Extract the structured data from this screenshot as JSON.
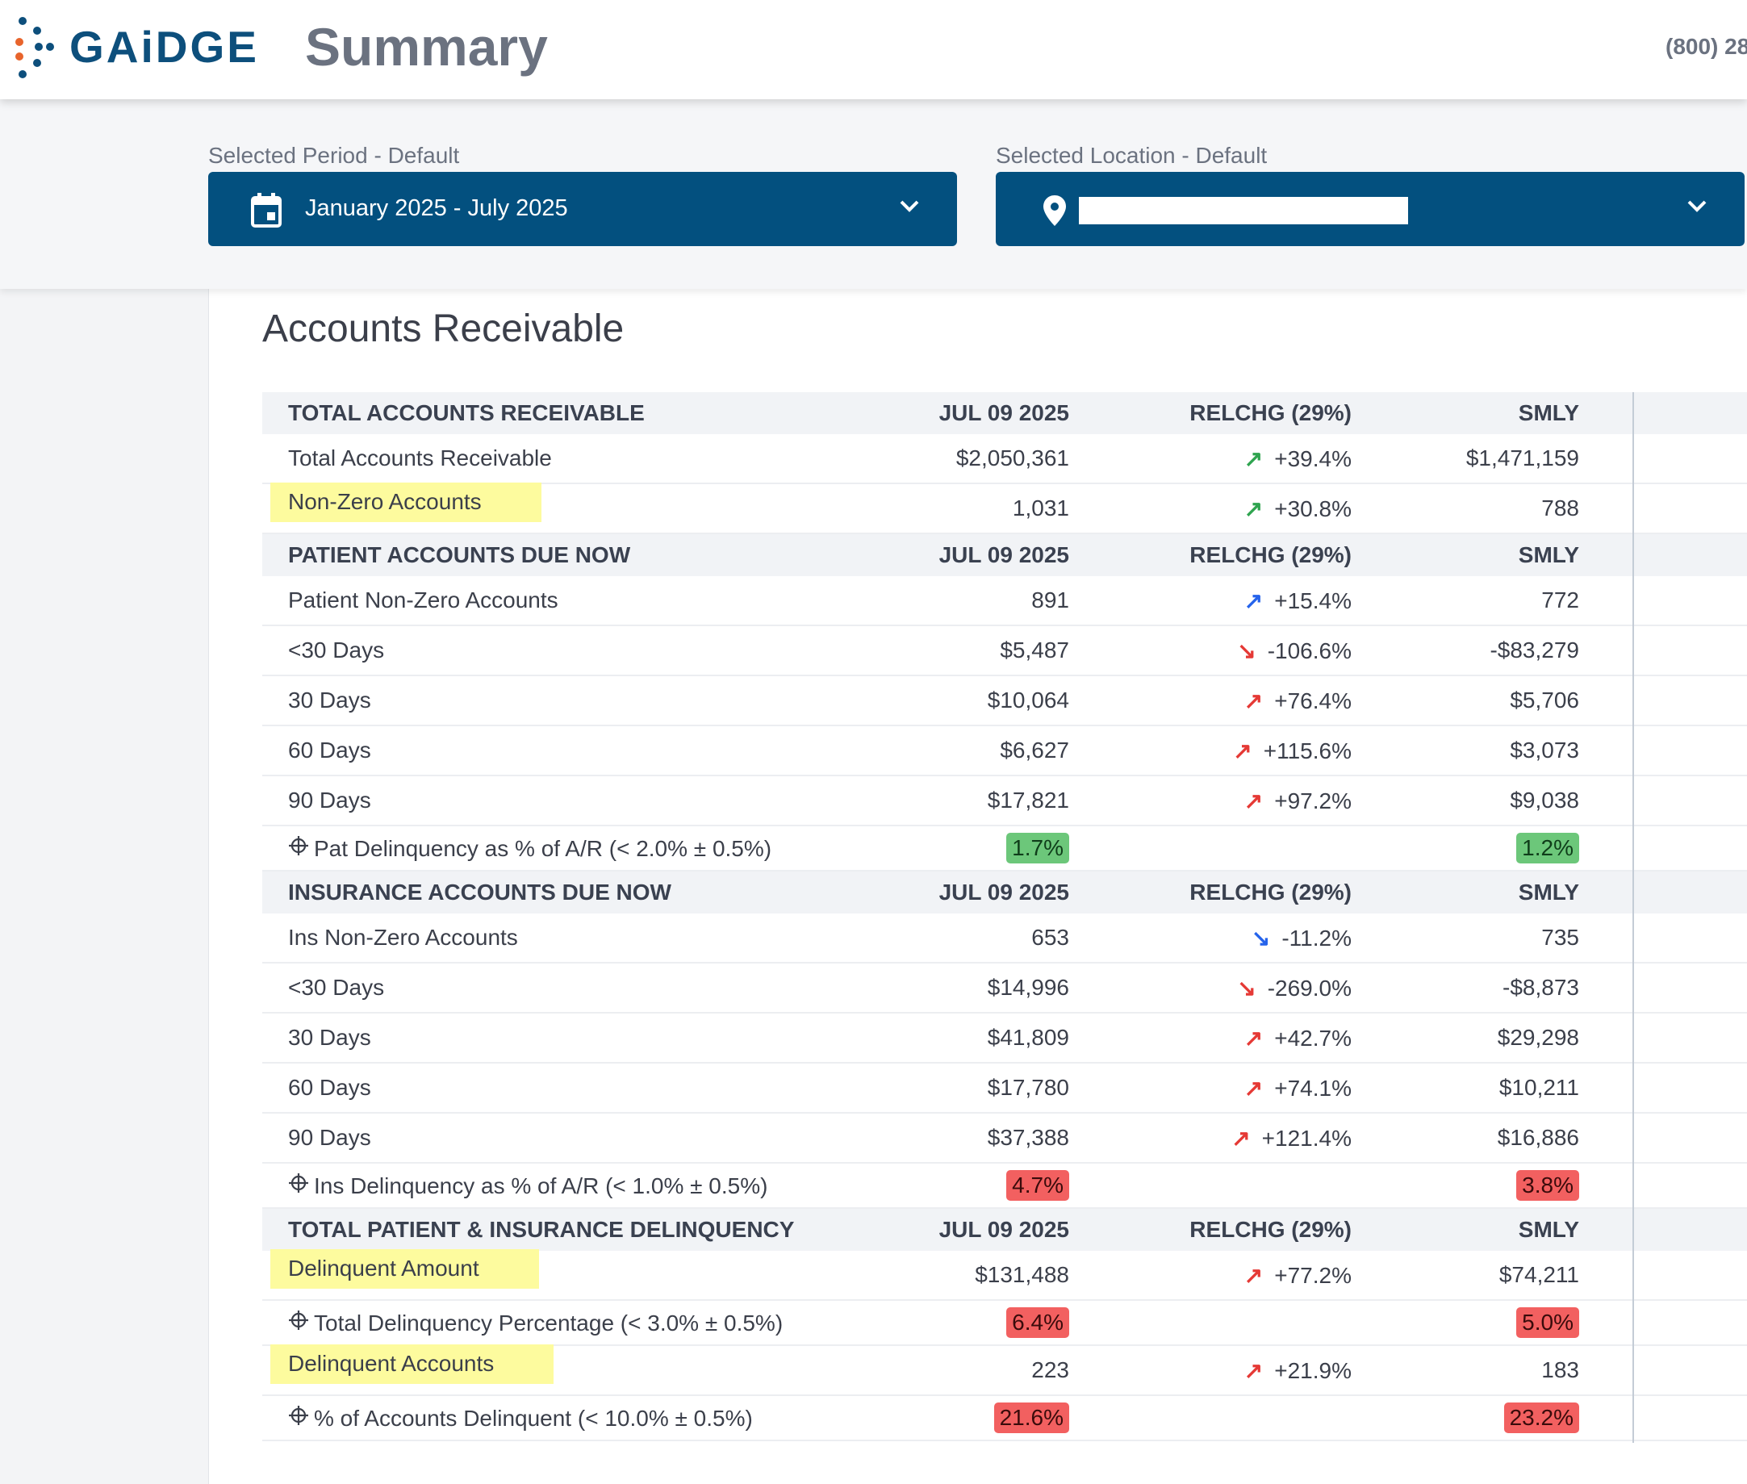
{
  "header": {
    "logo_text": "GAiDGE",
    "page_title": "Summary",
    "phone": "(800) 28"
  },
  "filters": {
    "period_label": "Selected Period - Default",
    "period_value": "January 2025 - July 2025",
    "location_label": "Selected Location - Default",
    "location_value": ""
  },
  "colors": {
    "brand": "#03507f",
    "logo_blue": "#0d4f7c",
    "logo_orange": "#e8642c",
    "highlight": "#fdfb9e",
    "badge_green": "#6cc77a",
    "badge_red": "#f26060"
  },
  "section": {
    "title": "Accounts Receivable"
  },
  "groups": [
    {
      "header": {
        "label": "TOTAL ACCOUNTS RECEIVABLE",
        "col1": "JUL 09 2025",
        "col2": "RELCHG (29%)",
        "col3": "SMLY"
      },
      "rows": [
        {
          "type": "data",
          "label": "Total Accounts Receivable",
          "col1": "$2,050,361",
          "arrow": "↗",
          "arrow_color": "up-green",
          "col2": "+39.4%",
          "col3": "$1,471,159",
          "highlight": false
        },
        {
          "type": "data",
          "label": "Non-Zero Accounts",
          "col1": "1,031",
          "arrow": "↗",
          "arrow_color": "up-green",
          "col2": "+30.8%",
          "col3": "788",
          "highlight": true
        }
      ]
    },
    {
      "header": {
        "label": "PATIENT ACCOUNTS DUE NOW",
        "col1": "JUL 09 2025",
        "col2": "RELCHG (29%)",
        "col3": "SMLY"
      },
      "rows": [
        {
          "type": "data",
          "label": "Patient Non-Zero Accounts",
          "col1": "891",
          "arrow": "↗",
          "arrow_color": "up-blue",
          "col2": "+15.4%",
          "col3": "772",
          "highlight": false
        },
        {
          "type": "data",
          "label": "<30 Days",
          "col1": "$5,487",
          "arrow": "↘",
          "arrow_color": "down-red",
          "col2": "-106.6%",
          "col3": "-$83,279",
          "highlight": false
        },
        {
          "type": "data",
          "label": "30 Days",
          "col1": "$10,064",
          "arrow": "↗",
          "arrow_color": "up-red",
          "col2": "+76.4%",
          "col3": "$5,706",
          "highlight": false
        },
        {
          "type": "data",
          "label": "60 Days",
          "col1": "$6,627",
          "arrow": "↗",
          "arrow_color": "up-red",
          "col2": "+115.6%",
          "col3": "$3,073",
          "highlight": false
        },
        {
          "type": "data",
          "label": "90 Days",
          "col1": "$17,821",
          "arrow": "↗",
          "arrow_color": "up-red",
          "col2": "+97.2%",
          "col3": "$9,038",
          "highlight": false
        },
        {
          "type": "metric",
          "label": "Pat Delinquency as % of A/R (< 2.0% ± 0.5%)",
          "col1": "1.7%",
          "col1_status": "green",
          "col3": "1.2%",
          "col3_status": "green"
        }
      ]
    },
    {
      "header": {
        "label": "INSURANCE ACCOUNTS DUE NOW",
        "col1": "JUL 09 2025",
        "col2": "RELCHG (29%)",
        "col3": "SMLY"
      },
      "rows": [
        {
          "type": "data",
          "label": "Ins Non-Zero Accounts",
          "col1": "653",
          "arrow": "↘",
          "arrow_color": "down-blue",
          "col2": "-11.2%",
          "col3": "735",
          "highlight": false
        },
        {
          "type": "data",
          "label": "<30 Days",
          "col1": "$14,996",
          "arrow": "↘",
          "arrow_color": "down-red",
          "col2": "-269.0%",
          "col3": "-$8,873",
          "highlight": false
        },
        {
          "type": "data",
          "label": "30 Days",
          "col1": "$41,809",
          "arrow": "↗",
          "arrow_color": "up-red",
          "col2": "+42.7%",
          "col3": "$29,298",
          "highlight": false
        },
        {
          "type": "data",
          "label": "60 Days",
          "col1": "$17,780",
          "arrow": "↗",
          "arrow_color": "up-red",
          "col2": "+74.1%",
          "col3": "$10,211",
          "highlight": false
        },
        {
          "type": "data",
          "label": "90 Days",
          "col1": "$37,388",
          "arrow": "↗",
          "arrow_color": "up-red",
          "col2": "+121.4%",
          "col3": "$16,886",
          "highlight": false
        },
        {
          "type": "metric",
          "label": "Ins Delinquency as % of A/R (< 1.0% ± 0.5%)",
          "col1": "4.7%",
          "col1_status": "red",
          "col3": "3.8%",
          "col3_status": "red"
        }
      ]
    },
    {
      "header": {
        "label": "TOTAL PATIENT & INSURANCE DELINQUENCY",
        "col1": "JUL 09 2025",
        "col2": "RELCHG (29%)",
        "col3": "SMLY"
      },
      "rows": [
        {
          "type": "data",
          "label": "Delinquent Amount",
          "col1": "$131,488",
          "arrow": "↗",
          "arrow_color": "up-red",
          "col2": "+77.2%",
          "col3": "$74,211",
          "highlight": true
        },
        {
          "type": "metric",
          "label": "Total Delinquency Percentage (< 3.0% ± 0.5%)",
          "col1": "6.4%",
          "col1_status": "red",
          "col3": "5.0%",
          "col3_status": "red"
        },
        {
          "type": "data",
          "label": "Delinquent Accounts",
          "col1": "223",
          "arrow": "↗",
          "arrow_color": "up-red",
          "col2": "+21.9%",
          "col3": "183",
          "highlight": true
        },
        {
          "type": "metric",
          "label": "% of Accounts Delinquent (< 10.0% ± 0.5%)",
          "col1": "21.6%",
          "col1_status": "red",
          "col3": "23.2%",
          "col3_status": "red"
        }
      ]
    }
  ]
}
